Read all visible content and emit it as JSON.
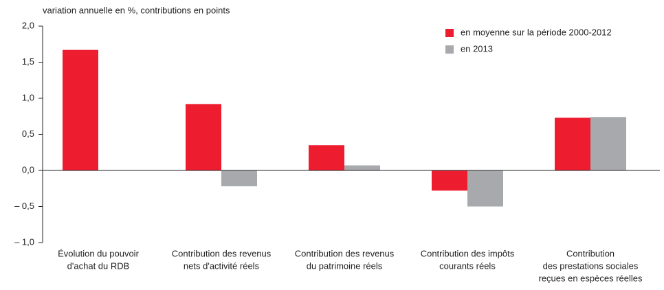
{
  "chart_data": {
    "type": "bar",
    "title": "variation annuelle en %, contributions en points",
    "categories": [
      [
        "Évolution du pouvoir",
        "d'achat du RDB"
      ],
      [
        "Contribution des revenus",
        "nets d'activité réels"
      ],
      [
        "Contribution des revenus",
        "du patrimoine réels"
      ],
      [
        "Contribution des impôts",
        "courants réels"
      ],
      [
        "Contribution",
        "des prestations sociales",
        "reçues en espèces réelles"
      ]
    ],
    "series": [
      {
        "name": "en moyenne sur la période 2000-2012",
        "color": "#ed1c2e",
        "values": [
          1.67,
          0.92,
          0.35,
          -0.28,
          0.73
        ]
      },
      {
        "name": "en 2013",
        "color": "#a7a9ac",
        "values": [
          null,
          -0.22,
          0.07,
          -0.5,
          0.74
        ]
      }
    ],
    "ylim": [
      -1,
      2
    ],
    "yticks": [
      {
        "value": 2,
        "label": "2,0"
      },
      {
        "value": 1.5,
        "label": "1,5"
      },
      {
        "value": 1,
        "label": "1,0"
      },
      {
        "value": 0.5,
        "label": "0,5"
      },
      {
        "value": 0,
        "label": "0,0"
      },
      {
        "value": -0.5,
        "label": "– 0,5"
      },
      {
        "value": -1,
        "label": "– 1,0"
      }
    ],
    "legend": "upper right"
  }
}
